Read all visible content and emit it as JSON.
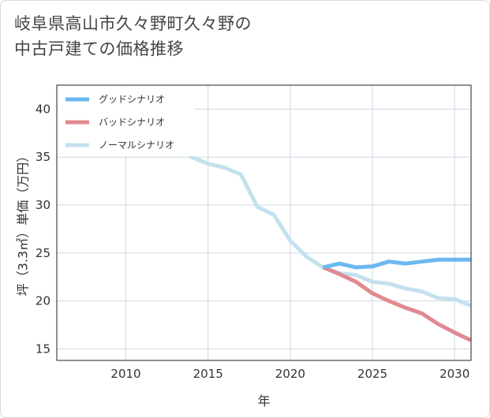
{
  "title_line1": "岐阜県高山市久々野町久々野の",
  "title_line2": "中古戸建ての価格推移",
  "chart_data": {
    "type": "line",
    "xlabel": "年",
    "ylabel": "坪（3.3㎡）単価（万円）",
    "xlim": [
      2005.8,
      2031
    ],
    "ylim": [
      13.8,
      42.5
    ],
    "x_ticks": [
      2010,
      2015,
      2020,
      2025,
      2030
    ],
    "y_ticks": [
      15,
      20,
      25,
      30,
      35,
      40
    ],
    "grid": true,
    "legend_position": "top-left",
    "series": [
      {
        "name": "グッドシナリオ",
        "color": "#6cb8f0",
        "x": [
          2022,
          2023,
          2024,
          2025,
          2026,
          2027,
          2028,
          2029,
          2030,
          2031
        ],
        "y": [
          23.5,
          23.9,
          23.5,
          23.6,
          24.1,
          23.9,
          24.1,
          24.3,
          24.3,
          24.3
        ]
      },
      {
        "name": "バッドシナリオ",
        "color": "#e08a90",
        "x": [
          2022,
          2023,
          2024,
          2025,
          2026,
          2027,
          2028,
          2029,
          2030,
          2031
        ],
        "y": [
          23.5,
          22.8,
          22.0,
          20.8,
          20.0,
          19.3,
          18.7,
          17.6,
          16.7,
          15.9
        ]
      },
      {
        "name": "ノーマルシナリオ",
        "color": "#c3e1ee",
        "x": [
          2008,
          2009,
          2010,
          2011,
          2012,
          2013,
          2014,
          2015,
          2016,
          2017,
          2018,
          2019,
          2020,
          2021,
          2022,
          2023,
          2024,
          2025,
          2026,
          2027,
          2028,
          2029,
          2030,
          2031
        ],
        "y": [
          39.8,
          40.6,
          40.6,
          41.2,
          38.2,
          37.0,
          35.0,
          34.3,
          33.9,
          33.2,
          29.8,
          29.0,
          26.3,
          24.6,
          23.5,
          22.9,
          22.7,
          22.0,
          21.8,
          21.3,
          21.0,
          20.3,
          20.2,
          19.5
        ]
      }
    ]
  }
}
